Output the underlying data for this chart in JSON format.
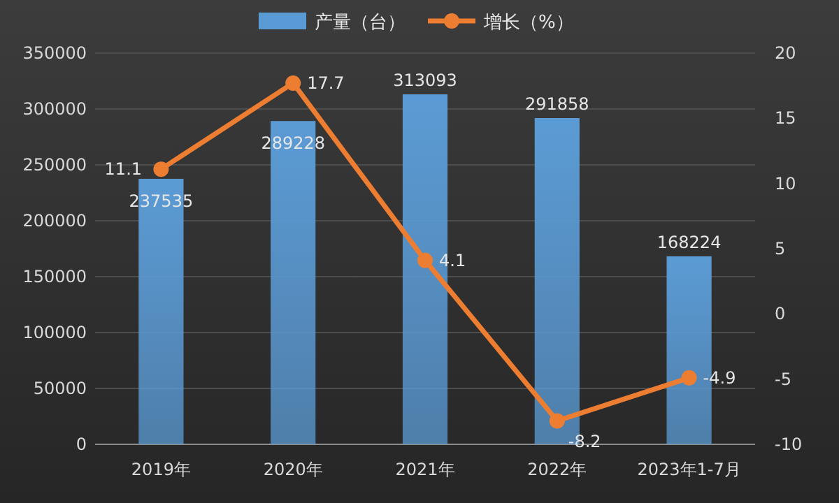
{
  "chart_data": {
    "type": "bar",
    "categories": [
      "2019年",
      "2020年",
      "2021年",
      "2022年",
      "2023年1-7月"
    ],
    "series": [
      {
        "name": "产量（台）",
        "color": "#5b9bd5",
        "values": [
          237535,
          289228,
          313093,
          291858,
          168224
        ]
      },
      {
        "name": "增长（%）",
        "type": "line",
        "axis": "y2",
        "color": "#ed7d31",
        "values": [
          11.1,
          17.7,
          4.1,
          -8.2,
          -4.9
        ]
      }
    ],
    "ylim": [
      0,
      350000
    ],
    "yticks": [
      0,
      50000,
      100000,
      150000,
      200000,
      250000,
      300000,
      350000
    ],
    "y2lim": [
      -10,
      20
    ],
    "y2ticks": [
      -10,
      -5,
      0,
      5,
      10,
      15,
      20
    ],
    "data_labels": true,
    "legend": "top",
    "grid": "y",
    "marker": "circle"
  }
}
